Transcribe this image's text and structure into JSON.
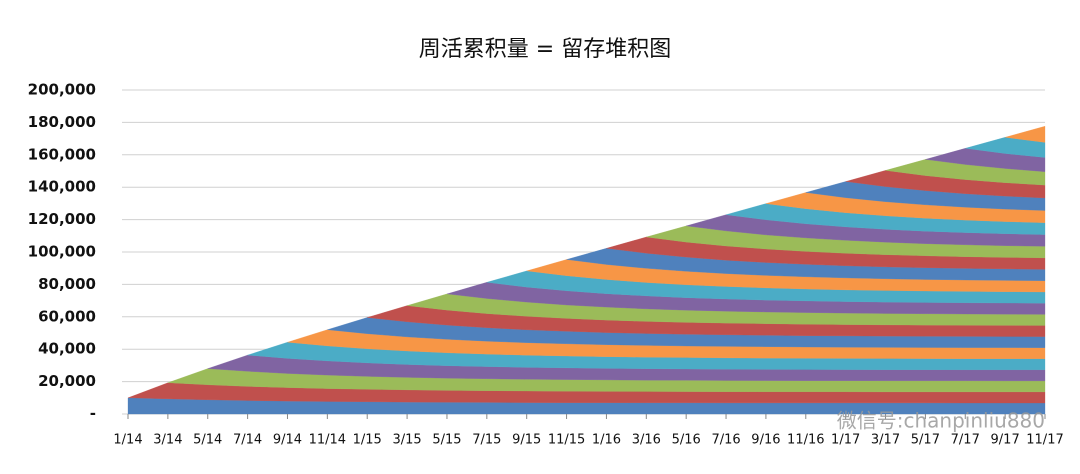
{
  "chart_data": {
    "type": "stacked_area",
    "title": "周活累积量 = 留存堆积图",
    "watermark": "微信号:chanpinliu880",
    "categories": [
      "1/14",
      "3/14",
      "5/14",
      "7/14",
      "9/14",
      "11/14",
      "1/15",
      "3/15",
      "5/15",
      "7/15",
      "9/15",
      "11/15",
      "1/16",
      "3/16",
      "5/16",
      "7/16",
      "9/16",
      "11/16",
      "1/17",
      "3/17",
      "5/17",
      "7/17",
      "9/17",
      "11/17"
    ],
    "ylim": [
      0,
      200000
    ],
    "yticks": [
      {
        "value": 0,
        "label": "-"
      },
      {
        "value": 20000,
        "label": "20,000"
      },
      {
        "value": 40000,
        "label": "40,000"
      },
      {
        "value": 60000,
        "label": "60,000"
      },
      {
        "value": 80000,
        "label": "80,000"
      },
      {
        "value": 100000,
        "label": "100,000"
      },
      {
        "value": 120000,
        "label": "120,000"
      },
      {
        "value": 140000,
        "label": "140,000"
      },
      {
        "value": 160000,
        "label": "160,000"
      },
      {
        "value": 180000,
        "label": "180,000"
      },
      {
        "value": 200000,
        "label": "200,000"
      }
    ],
    "grid": true,
    "series": [
      {
        "color": "#4f81bd",
        "values": [
          10000,
          9292,
          8741,
          8312,
          7977,
          7717,
          7514,
          7356,
          7233,
          7137,
          7063,
          7004,
          6959,
          6924,
          6897,
          6875,
          6859,
          6846,
          6836,
          6828,
          6821,
          6817,
          6813,
          6810
        ]
      },
      {
        "color": "#c0504d",
        "values": [
          null,
          10000,
          9292,
          8741,
          8312,
          7977,
          7717,
          7514,
          7356,
          7233,
          7137,
          7063,
          7004,
          6959,
          6924,
          6897,
          6875,
          6859,
          6846,
          6836,
          6828,
          6821,
          6817,
          6813
        ]
      },
      {
        "color": "#9bbb59",
        "values": [
          null,
          null,
          10000,
          9292,
          8741,
          8312,
          7977,
          7717,
          7514,
          7356,
          7233,
          7137,
          7063,
          7004,
          6959,
          6924,
          6897,
          6875,
          6859,
          6846,
          6836,
          6828,
          6821,
          6817
        ]
      },
      {
        "color": "#8064a2",
        "values": [
          null,
          null,
          null,
          10000,
          9292,
          8741,
          8312,
          7977,
          7717,
          7514,
          7356,
          7233,
          7137,
          7063,
          7004,
          6959,
          6924,
          6897,
          6875,
          6859,
          6846,
          6836,
          6828,
          6821
        ]
      },
      {
        "color": "#4bacc6",
        "values": [
          null,
          null,
          null,
          null,
          10000,
          9292,
          8741,
          8312,
          7977,
          7717,
          7514,
          7356,
          7233,
          7137,
          7063,
          7004,
          6959,
          6924,
          6897,
          6875,
          6859,
          6846,
          6836,
          6828
        ]
      },
      {
        "color": "#f79646",
        "values": [
          null,
          null,
          null,
          null,
          null,
          10000,
          9292,
          8741,
          8312,
          7977,
          7717,
          7514,
          7356,
          7233,
          7137,
          7063,
          7004,
          6959,
          6924,
          6897,
          6875,
          6859,
          6846,
          6836
        ]
      },
      {
        "color": "#4f81bd",
        "values": [
          null,
          null,
          null,
          null,
          null,
          null,
          10000,
          9292,
          8741,
          8312,
          7977,
          7717,
          7514,
          7356,
          7233,
          7137,
          7063,
          7004,
          6959,
          6924,
          6897,
          6875,
          6859,
          6846
        ]
      },
      {
        "color": "#c0504d",
        "values": [
          null,
          null,
          null,
          null,
          null,
          null,
          null,
          10000,
          9292,
          8741,
          8312,
          7977,
          7717,
          7514,
          7356,
          7233,
          7137,
          7063,
          7004,
          6959,
          6924,
          6897,
          6875,
          6859
        ]
      },
      {
        "color": "#9bbb59",
        "values": [
          null,
          null,
          null,
          null,
          null,
          null,
          null,
          null,
          10000,
          9292,
          8741,
          8312,
          7977,
          7717,
          7514,
          7356,
          7233,
          7137,
          7063,
          7004,
          6959,
          6924,
          6897,
          6875
        ]
      },
      {
        "color": "#8064a2",
        "values": [
          null,
          null,
          null,
          null,
          null,
          null,
          null,
          null,
          null,
          10000,
          9292,
          8741,
          8312,
          7977,
          7717,
          7514,
          7356,
          7233,
          7137,
          7063,
          7004,
          6959,
          6924,
          6897
        ]
      },
      {
        "color": "#4bacc6",
        "values": [
          null,
          null,
          null,
          null,
          null,
          null,
          null,
          null,
          null,
          null,
          10000,
          9292,
          8741,
          8312,
          7977,
          7717,
          7514,
          7356,
          7233,
          7137,
          7063,
          7004,
          6959,
          6924
        ]
      },
      {
        "color": "#f79646",
        "values": [
          null,
          null,
          null,
          null,
          null,
          null,
          null,
          null,
          null,
          null,
          null,
          10000,
          9292,
          8741,
          8312,
          7977,
          7717,
          7514,
          7356,
          7233,
          7137,
          7063,
          7004,
          6959
        ]
      },
      {
        "color": "#4f81bd",
        "values": [
          null,
          null,
          null,
          null,
          null,
          null,
          null,
          null,
          null,
          null,
          null,
          null,
          10000,
          9292,
          8741,
          8312,
          7977,
          7717,
          7514,
          7356,
          7233,
          7137,
          7063,
          7004
        ]
      },
      {
        "color": "#c0504d",
        "values": [
          null,
          null,
          null,
          null,
          null,
          null,
          null,
          null,
          null,
          null,
          null,
          null,
          null,
          10000,
          9292,
          8741,
          8312,
          7977,
          7717,
          7514,
          7356,
          7233,
          7137,
          7063
        ]
      },
      {
        "color": "#9bbb59",
        "values": [
          null,
          null,
          null,
          null,
          null,
          null,
          null,
          null,
          null,
          null,
          null,
          null,
          null,
          null,
          10000,
          9292,
          8741,
          8312,
          7977,
          7717,
          7514,
          7356,
          7233,
          7137
        ]
      },
      {
        "color": "#8064a2",
        "values": [
          null,
          null,
          null,
          null,
          null,
          null,
          null,
          null,
          null,
          null,
          null,
          null,
          null,
          null,
          null,
          10000,
          9292,
          8741,
          8312,
          7977,
          7717,
          7514,
          7356,
          7233
        ]
      },
      {
        "color": "#4bacc6",
        "values": [
          null,
          null,
          null,
          null,
          null,
          null,
          null,
          null,
          null,
          null,
          null,
          null,
          null,
          null,
          null,
          null,
          10000,
          9292,
          8741,
          8312,
          7977,
          7717,
          7514,
          7356
        ]
      },
      {
        "color": "#f79646",
        "values": [
          null,
          null,
          null,
          null,
          null,
          null,
          null,
          null,
          null,
          null,
          null,
          null,
          null,
          null,
          null,
          null,
          null,
          10000,
          9292,
          8741,
          8312,
          7977,
          7717,
          7514
        ]
      },
      {
        "color": "#4f81bd",
        "values": [
          null,
          null,
          null,
          null,
          null,
          null,
          null,
          null,
          null,
          null,
          null,
          null,
          null,
          null,
          null,
          null,
          null,
          null,
          10000,
          9292,
          8741,
          8312,
          7977,
          7717
        ]
      },
      {
        "color": "#c0504d",
        "values": [
          null,
          null,
          null,
          null,
          null,
          null,
          null,
          null,
          null,
          null,
          null,
          null,
          null,
          null,
          null,
          null,
          null,
          null,
          null,
          10000,
          9292,
          8741,
          8312,
          7977
        ]
      },
      {
        "color": "#9bbb59",
        "values": [
          null,
          null,
          null,
          null,
          null,
          null,
          null,
          null,
          null,
          null,
          null,
          null,
          null,
          null,
          null,
          null,
          null,
          null,
          null,
          null,
          10000,
          9292,
          8741,
          8312
        ]
      },
      {
        "color": "#8064a2",
        "values": [
          null,
          null,
          null,
          null,
          null,
          null,
          null,
          null,
          null,
          null,
          null,
          null,
          null,
          null,
          null,
          null,
          null,
          null,
          null,
          null,
          null,
          10000,
          9292,
          8741
        ]
      },
      {
        "color": "#4bacc6",
        "values": [
          null,
          null,
          null,
          null,
          null,
          null,
          null,
          null,
          null,
          null,
          null,
          null,
          null,
          null,
          null,
          null,
          null,
          null,
          null,
          null,
          null,
          null,
          10000,
          9292
        ]
      },
      {
        "color": "#f79646",
        "values": [
          null,
          null,
          null,
          null,
          null,
          null,
          null,
          null,
          null,
          null,
          null,
          null,
          null,
          null,
          null,
          null,
          null,
          null,
          null,
          null,
          null,
          null,
          null,
          10000
        ]
      }
    ]
  }
}
